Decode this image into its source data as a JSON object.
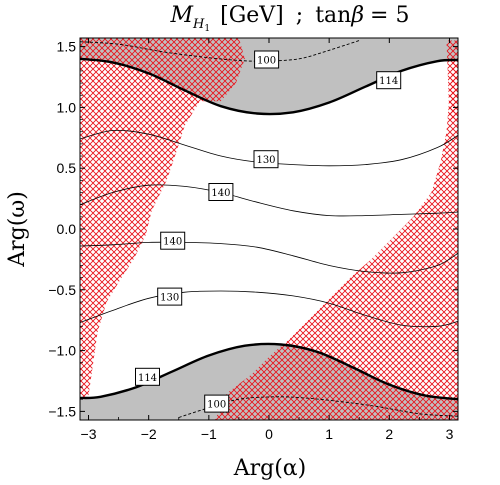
{
  "chart_data": {
    "type": "contour",
    "title": "M_H1 [GeV] ; tanβ = 5",
    "title_parts": {
      "var_main": "M",
      "var_sub_main": "H",
      "var_sub_sub": "1",
      "unit": "[GeV]",
      "separator": ";",
      "param_name": "tan",
      "param_symbol": "β",
      "param_eq": "= 5"
    },
    "xlabel": "Arg(α)",
    "ylabel": "Arg(ω)",
    "xlim": [
      -3.14159,
      3.14159
    ],
    "ylim": [
      -1.5708,
      1.5708
    ],
    "x_ticks": [
      {
        "value": -3,
        "label": "−3"
      },
      {
        "value": -2,
        "label": "−2"
      },
      {
        "value": -1,
        "label": "−1"
      },
      {
        "value": 0,
        "label": "0"
      },
      {
        "value": 1,
        "label": "1"
      },
      {
        "value": 2,
        "label": "2"
      },
      {
        "value": 3,
        "label": "3"
      }
    ],
    "y_ticks": [
      {
        "value": 1.5,
        "label": "1.5"
      },
      {
        "value": 1.0,
        "label": "1.0"
      },
      {
        "value": 0.5,
        "label": "0.5"
      },
      {
        "value": 0.0,
        "label": "0.0"
      },
      {
        "value": -0.5,
        "label": "−0.5"
      },
      {
        "value": -1.0,
        "label": "−1.0"
      },
      {
        "value": -1.5,
        "label": "−1.5"
      }
    ],
    "excluded_fill": "#c0c0c0",
    "hatch_color": "#e8141c",
    "contours": [
      {
        "level": "100",
        "label": "100",
        "style": "dashed",
        "label_at": [
          -0.04,
          1.39
        ],
        "points": [
          [
            -3.14,
            1.54
          ],
          [
            -2.5,
            1.52
          ],
          [
            -1.8,
            1.46
          ],
          [
            -1.2,
            1.42
          ],
          [
            -0.6,
            1.39
          ],
          [
            -0.1,
            1.38
          ],
          [
            0.5,
            1.4
          ],
          [
            1.0,
            1.47
          ],
          [
            1.5,
            1.55
          ]
        ]
      },
      {
        "level": "114",
        "label": "114",
        "style": "thick",
        "label_at": [
          1.99,
          1.22
        ],
        "points": [
          [
            -3.14,
            1.4
          ],
          [
            -2.6,
            1.37
          ],
          [
            -2.0,
            1.28
          ],
          [
            -1.4,
            1.14
          ],
          [
            -0.8,
            1.01
          ],
          [
            -0.2,
            0.95
          ],
          [
            0.4,
            0.96
          ],
          [
            1.0,
            1.04
          ],
          [
            1.6,
            1.17
          ],
          [
            2.2,
            1.3
          ],
          [
            2.8,
            1.38
          ],
          [
            3.14,
            1.39
          ]
        ]
      },
      {
        "level": "130",
        "label": "130",
        "style": "thin",
        "label_at": [
          -0.05,
          0.57
        ],
        "points": [
          [
            -3.14,
            0.74
          ],
          [
            -2.6,
            0.81
          ],
          [
            -2.0,
            0.78
          ],
          [
            -1.4,
            0.69
          ],
          [
            -0.8,
            0.6
          ],
          [
            -0.2,
            0.55
          ],
          [
            0.4,
            0.53
          ],
          [
            1.0,
            0.52
          ],
          [
            1.6,
            0.53
          ],
          [
            2.2,
            0.57
          ],
          [
            2.8,
            0.67
          ],
          [
            3.14,
            0.77
          ]
        ]
      },
      {
        "level": "140",
        "label": "140",
        "style": "thin",
        "label_at": [
          -0.8,
          0.3
        ],
        "points": [
          [
            -3.14,
            0.2
          ],
          [
            -2.6,
            0.3
          ],
          [
            -2.0,
            0.36
          ],
          [
            -1.4,
            0.35
          ],
          [
            -0.8,
            0.3
          ],
          [
            -0.2,
            0.22
          ],
          [
            0.4,
            0.15
          ],
          [
            1.0,
            0.11
          ],
          [
            1.6,
            0.11
          ],
          [
            2.2,
            0.12
          ],
          [
            2.8,
            0.13
          ],
          [
            3.14,
            0.14
          ]
        ]
      },
      {
        "level": "140",
        "label": "140",
        "style": "thin",
        "label_at": [
          -1.6,
          -0.1
        ],
        "points": [
          [
            -3.14,
            -0.14
          ],
          [
            -2.6,
            -0.13
          ],
          [
            -2.0,
            -0.11
          ],
          [
            -1.4,
            -0.11
          ],
          [
            -0.8,
            -0.12
          ],
          [
            -0.2,
            -0.15
          ],
          [
            0.4,
            -0.22
          ],
          [
            1.0,
            -0.3
          ],
          [
            1.6,
            -0.35
          ],
          [
            2.2,
            -0.36
          ],
          [
            2.8,
            -0.3
          ],
          [
            3.14,
            -0.2
          ]
        ]
      },
      {
        "level": "130",
        "label": "130",
        "style": "thin",
        "label_at": [
          -1.65,
          -0.56
        ],
        "points": [
          [
            -3.14,
            -0.77
          ],
          [
            -2.6,
            -0.67
          ],
          [
            -2.0,
            -0.57
          ],
          [
            -1.4,
            -0.52
          ],
          [
            -0.8,
            -0.51
          ],
          [
            -0.2,
            -0.52
          ],
          [
            0.4,
            -0.55
          ],
          [
            1.0,
            -0.61
          ],
          [
            1.6,
            -0.71
          ],
          [
            2.2,
            -0.79
          ],
          [
            2.8,
            -0.8
          ],
          [
            3.14,
            -0.76
          ]
        ]
      },
      {
        "level": "114",
        "label": "114",
        "style": "thick",
        "label_at": [
          -2.02,
          -1.22
        ],
        "points": [
          [
            -3.14,
            -1.39
          ],
          [
            -2.8,
            -1.38
          ],
          [
            -2.2,
            -1.3
          ],
          [
            -1.6,
            -1.17
          ],
          [
            -1.0,
            -1.04
          ],
          [
            -0.4,
            -0.96
          ],
          [
            0.2,
            -0.95
          ],
          [
            0.8,
            -1.01
          ],
          [
            1.4,
            -1.14
          ],
          [
            2.0,
            -1.28
          ],
          [
            2.6,
            -1.37
          ],
          [
            3.14,
            -1.4
          ]
        ]
      },
      {
        "level": "100",
        "label": "100",
        "style": "dashed",
        "label_at": [
          -0.87,
          -1.44
        ],
        "points": [
          [
            -1.5,
            -1.55
          ],
          [
            -1.0,
            -1.47
          ],
          [
            -0.5,
            -1.4
          ],
          [
            0.1,
            -1.38
          ],
          [
            0.6,
            -1.39
          ],
          [
            1.2,
            -1.42
          ],
          [
            1.8,
            -1.46
          ],
          [
            2.5,
            -1.52
          ],
          [
            3.14,
            -1.54
          ]
        ]
      }
    ],
    "gray_regions": [
      {
        "points": [
          [
            -3.14,
            1.4
          ],
          [
            -2.6,
            1.37
          ],
          [
            -2.0,
            1.28
          ],
          [
            -1.4,
            1.14
          ],
          [
            -0.8,
            1.01
          ],
          [
            -0.2,
            0.95
          ],
          [
            0.4,
            0.96
          ],
          [
            1.0,
            1.04
          ],
          [
            1.6,
            1.17
          ],
          [
            2.2,
            1.3
          ],
          [
            2.8,
            1.38
          ],
          [
            3.14,
            1.39
          ],
          [
            3.14,
            1.5708
          ],
          [
            -3.14,
            1.5708
          ]
        ]
      },
      {
        "points": [
          [
            -3.14,
            -1.39
          ],
          [
            -2.8,
            -1.38
          ],
          [
            -2.2,
            -1.3
          ],
          [
            -1.6,
            -1.17
          ],
          [
            -1.0,
            -1.04
          ],
          [
            -0.4,
            -0.96
          ],
          [
            0.2,
            -0.95
          ],
          [
            0.8,
            -1.01
          ],
          [
            1.4,
            -1.14
          ],
          [
            2.0,
            -1.28
          ],
          [
            2.6,
            -1.37
          ],
          [
            3.14,
            -1.4
          ],
          [
            3.14,
            -1.5708
          ],
          [
            -3.14,
            -1.5708
          ]
        ]
      }
    ],
    "hatched_regions": [
      {
        "name": "upper-left",
        "points": [
          [
            -3.14,
            1.5708
          ],
          [
            -1.1,
            1.5708
          ],
          [
            -1.2,
            1.3
          ],
          [
            -1.15,
            1.05
          ],
          [
            -1.4,
            0.85
          ],
          [
            -1.55,
            0.62
          ],
          [
            -1.7,
            0.4
          ],
          [
            -1.95,
            0.15
          ],
          [
            -2.05,
            -0.05
          ],
          [
            -2.25,
            -0.25
          ],
          [
            -2.45,
            -0.4
          ],
          [
            -2.7,
            -0.6
          ],
          [
            -2.85,
            -0.85
          ],
          [
            -2.95,
            -1.2
          ],
          [
            -3.0,
            -1.37
          ],
          [
            -3.14,
            -1.39
          ]
        ]
      },
      {
        "name": "upper-left-top-gap",
        "points": [
          [
            -1.1,
            1.5708
          ],
          [
            -0.5,
            1.5708
          ],
          [
            -0.4,
            1.4
          ],
          [
            -0.55,
            1.2
          ],
          [
            -0.8,
            1.05
          ],
          [
            -1.15,
            1.05
          ],
          [
            -1.2,
            1.3
          ]
        ]
      },
      {
        "name": "lower-right",
        "points": [
          [
            3.14,
            -1.5708
          ],
          [
            -0.9,
            -1.5708
          ],
          [
            -0.7,
            -1.35
          ],
          [
            -0.3,
            -1.2
          ],
          [
            0.0,
            -1.05
          ],
          [
            0.35,
            -0.9
          ],
          [
            0.75,
            -0.7
          ],
          [
            1.05,
            -0.55
          ],
          [
            1.35,
            -0.4
          ],
          [
            1.7,
            -0.25
          ],
          [
            2.0,
            -0.1
          ],
          [
            2.4,
            0.1
          ],
          [
            2.7,
            0.3
          ],
          [
            2.85,
            0.55
          ],
          [
            2.95,
            0.8
          ],
          [
            3.0,
            1.1
          ],
          [
            3.05,
            1.37
          ],
          [
            3.14,
            1.39
          ]
        ]
      },
      {
        "name": "right-edge-strip",
        "points": [
          [
            2.95,
            1.55
          ],
          [
            3.14,
            1.55
          ],
          [
            3.14,
            0.9
          ],
          [
            3.0,
            0.9
          ]
        ]
      }
    ],
    "grid": false,
    "legend": "none"
  }
}
